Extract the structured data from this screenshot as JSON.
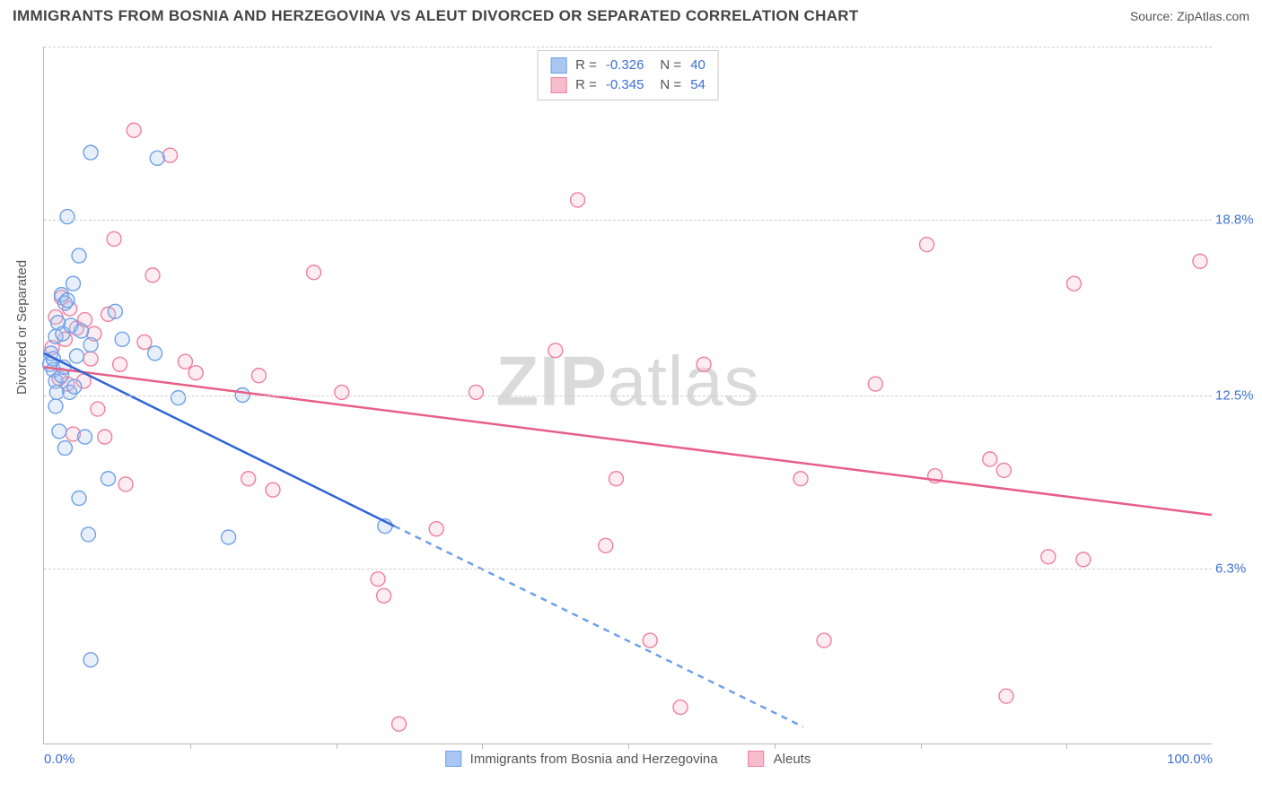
{
  "header": {
    "title": "IMMIGRANTS FROM BOSNIA AND HERZEGOVINA VS ALEUT DIVORCED OR SEPARATED CORRELATION CHART",
    "source": "Source: ZipAtlas.com"
  },
  "watermark": {
    "bold": "ZIP",
    "light": "atlas"
  },
  "chart": {
    "type": "scatter",
    "y_axis_title": "Divorced or Separated",
    "xlim": [
      0,
      100
    ],
    "ylim": [
      0,
      25
    ],
    "x_ticks_major": [
      0,
      100
    ],
    "x_ticks_minor": [
      12.5,
      25,
      37.5,
      50,
      62.5,
      75,
      87.5
    ],
    "x_tick_labels": {
      "0": "0.0%",
      "100": "100.0%"
    },
    "y_ticks": [
      6.3,
      12.5,
      18.8,
      25.0
    ],
    "y_tick_labels": {
      "6.3": "6.3%",
      "12.5": "12.5%",
      "18.8": "18.8%",
      "25.0": "25.0%"
    },
    "grid_color": "#cfcfcf",
    "axis_color": "#b8b8b8",
    "background_color": "#ffffff",
    "tick_label_color": "#3d6fd6",
    "axis_title_color": "#555555",
    "marker_radius": 8,
    "marker_stroke_width": 1.4,
    "marker_fill_opacity": 0.28,
    "trend_line_width": 2.5,
    "series": [
      {
        "id": "bosnia",
        "label": "Immigrants from Bosnia and Herzegovina",
        "color_stroke": "#6fa0e8",
        "color_fill": "#a9c7f2",
        "R": "-0.326",
        "N": "40",
        "trend": {
          "x1": 0,
          "y1": 14.0,
          "x2": 30,
          "y2": 7.8,
          "x2_ext": 65,
          "y2_ext": 0.6
        },
        "points": [
          [
            0.5,
            13.6
          ],
          [
            0.6,
            14.0
          ],
          [
            0.8,
            13.4
          ],
          [
            0.8,
            13.8
          ],
          [
            1.0,
            12.1
          ],
          [
            1.0,
            13.0
          ],
          [
            1.0,
            14.6
          ],
          [
            1.1,
            12.6
          ],
          [
            1.2,
            15.1
          ],
          [
            1.3,
            11.2
          ],
          [
            1.5,
            13.2
          ],
          [
            1.5,
            16.1
          ],
          [
            1.6,
            14.7
          ],
          [
            1.7,
            13.5
          ],
          [
            1.8,
            15.8
          ],
          [
            1.8,
            10.6
          ],
          [
            2.0,
            18.9
          ],
          [
            2.0,
            15.9
          ],
          [
            2.2,
            12.6
          ],
          [
            2.3,
            15.0
          ],
          [
            2.5,
            16.5
          ],
          [
            2.6,
            12.8
          ],
          [
            2.8,
            13.9
          ],
          [
            3.0,
            17.5
          ],
          [
            3.0,
            8.8
          ],
          [
            3.2,
            14.8
          ],
          [
            3.5,
            11.0
          ],
          [
            3.8,
            7.5
          ],
          [
            4.0,
            14.3
          ],
          [
            4.0,
            21.2
          ],
          [
            4.0,
            3.0
          ],
          [
            5.5,
            9.5
          ],
          [
            6.1,
            15.5
          ],
          [
            6.7,
            14.5
          ],
          [
            9.5,
            14.0
          ],
          [
            9.7,
            21.0
          ],
          [
            11.5,
            12.4
          ],
          [
            15.8,
            7.4
          ],
          [
            17.0,
            12.5
          ],
          [
            29.2,
            7.8
          ]
        ]
      },
      {
        "id": "aleuts",
        "label": "Aleuts",
        "color_stroke": "#f07f9e",
        "color_fill": "#f7bccb",
        "R": "-0.345",
        "N": "54",
        "trend": {
          "x1": 0,
          "y1": 13.5,
          "x2": 100,
          "y2": 8.2
        },
        "points": [
          [
            0.7,
            14.2
          ],
          [
            1.0,
            15.3
          ],
          [
            1.3,
            13.1
          ],
          [
            1.5,
            16.0
          ],
          [
            1.8,
            14.5
          ],
          [
            2.0,
            12.9
          ],
          [
            2.2,
            15.6
          ],
          [
            2.5,
            11.1
          ],
          [
            2.8,
            14.9
          ],
          [
            3.4,
            13.0
          ],
          [
            3.5,
            15.2
          ],
          [
            4.0,
            13.8
          ],
          [
            4.3,
            14.7
          ],
          [
            4.6,
            12.0
          ],
          [
            5.2,
            11.0
          ],
          [
            5.5,
            15.4
          ],
          [
            6.0,
            18.1
          ],
          [
            6.5,
            13.6
          ],
          [
            7.0,
            9.3
          ],
          [
            7.7,
            22.0
          ],
          [
            8.6,
            14.4
          ],
          [
            9.3,
            16.8
          ],
          [
            10.8,
            21.1
          ],
          [
            12.1,
            13.7
          ],
          [
            13.0,
            13.3
          ],
          [
            17.5,
            9.5
          ],
          [
            18.4,
            13.2
          ],
          [
            19.6,
            9.1
          ],
          [
            23.1,
            16.9
          ],
          [
            25.5,
            12.6
          ],
          [
            28.6,
            5.9
          ],
          [
            29.1,
            5.3
          ],
          [
            30.4,
            0.7
          ],
          [
            33.6,
            7.7
          ],
          [
            37.0,
            12.6
          ],
          [
            43.8,
            14.1
          ],
          [
            45.7,
            19.5
          ],
          [
            48.1,
            7.1
          ],
          [
            49.0,
            9.5
          ],
          [
            51.9,
            3.7
          ],
          [
            54.5,
            1.3
          ],
          [
            56.5,
            13.6
          ],
          [
            64.8,
            9.5
          ],
          [
            66.8,
            3.7
          ],
          [
            71.2,
            12.9
          ],
          [
            75.6,
            17.9
          ],
          [
            76.3,
            9.6
          ],
          [
            81.0,
            10.2
          ],
          [
            82.2,
            9.8
          ],
          [
            82.4,
            1.7
          ],
          [
            86.0,
            6.7
          ],
          [
            88.2,
            16.5
          ],
          [
            89.0,
            6.6
          ],
          [
            99.0,
            17.3
          ]
        ]
      }
    ]
  },
  "bottom_legend": {
    "items": [
      {
        "series": "bosnia",
        "label": "Immigrants from Bosnia and Herzegovina"
      },
      {
        "series": "aleuts",
        "label": "Aleuts"
      }
    ]
  }
}
